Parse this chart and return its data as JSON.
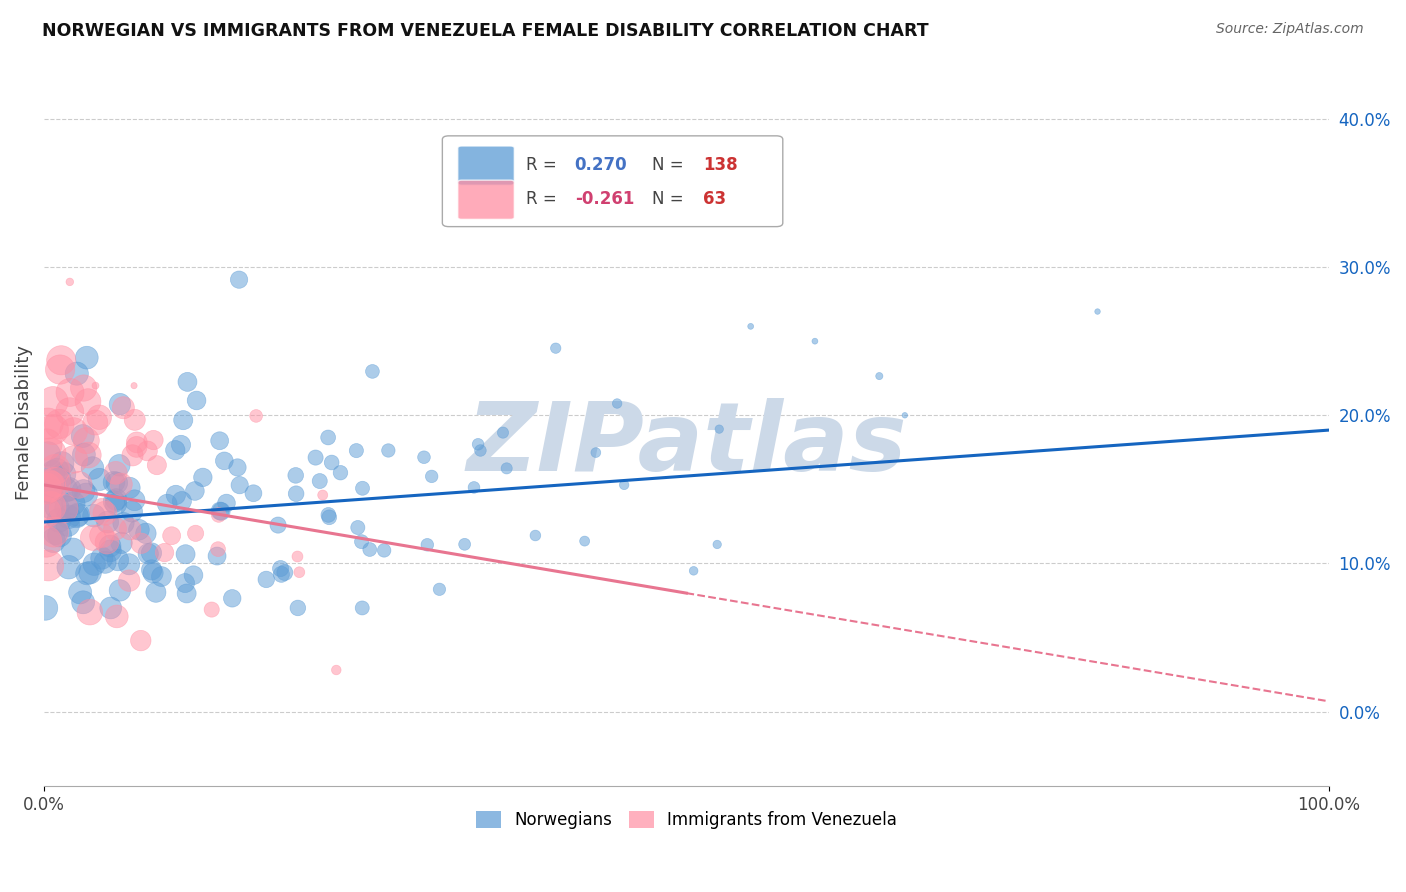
{
  "title": "NORWEGIAN VS IMMIGRANTS FROM VENEZUELA FEMALE DISABILITY CORRELATION CHART",
  "source": "Source: ZipAtlas.com",
  "ylabel": "Female Disability",
  "legend1_r": "0.270",
  "legend1_n": "138",
  "legend2_r": "-0.261",
  "legend2_n": "63",
  "blue_color": "#5B9BD5",
  "pink_color": "#FF8FA3",
  "blue_line_color": "#1565C0",
  "pink_line_color": "#E87590",
  "legend_blue_r_color": "#4472C4",
  "legend_pink_r_color": "#D04070",
  "legend_n_color": "#CC3333",
  "watermark": "ZIPatlas",
  "watermark_color": "#ccd9e8",
  "blue_line": {
    "x0": 0.0,
    "x1": 1.0,
    "y0": 0.128,
    "y1": 0.19
  },
  "pink_line_solid": {
    "x0": 0.0,
    "x1": 0.5,
    "y0": 0.153,
    "y1": 0.08
  },
  "pink_line_dash": {
    "x0": 0.5,
    "x1": 1.0,
    "y0": 0.08,
    "y1": 0.007
  },
  "xlim": [
    0.0,
    1.0
  ],
  "ylim": [
    -0.05,
    0.44
  ],
  "yticks": [
    0.0,
    0.1,
    0.2,
    0.3,
    0.4
  ],
  "right_tick_labels": [
    "0.0%",
    "10.0%",
    "20.0%",
    "30.0%",
    "40.0%"
  ],
  "bottom_legend_labels": [
    "Norwegians",
    "Immigrants from Venezuela"
  ]
}
